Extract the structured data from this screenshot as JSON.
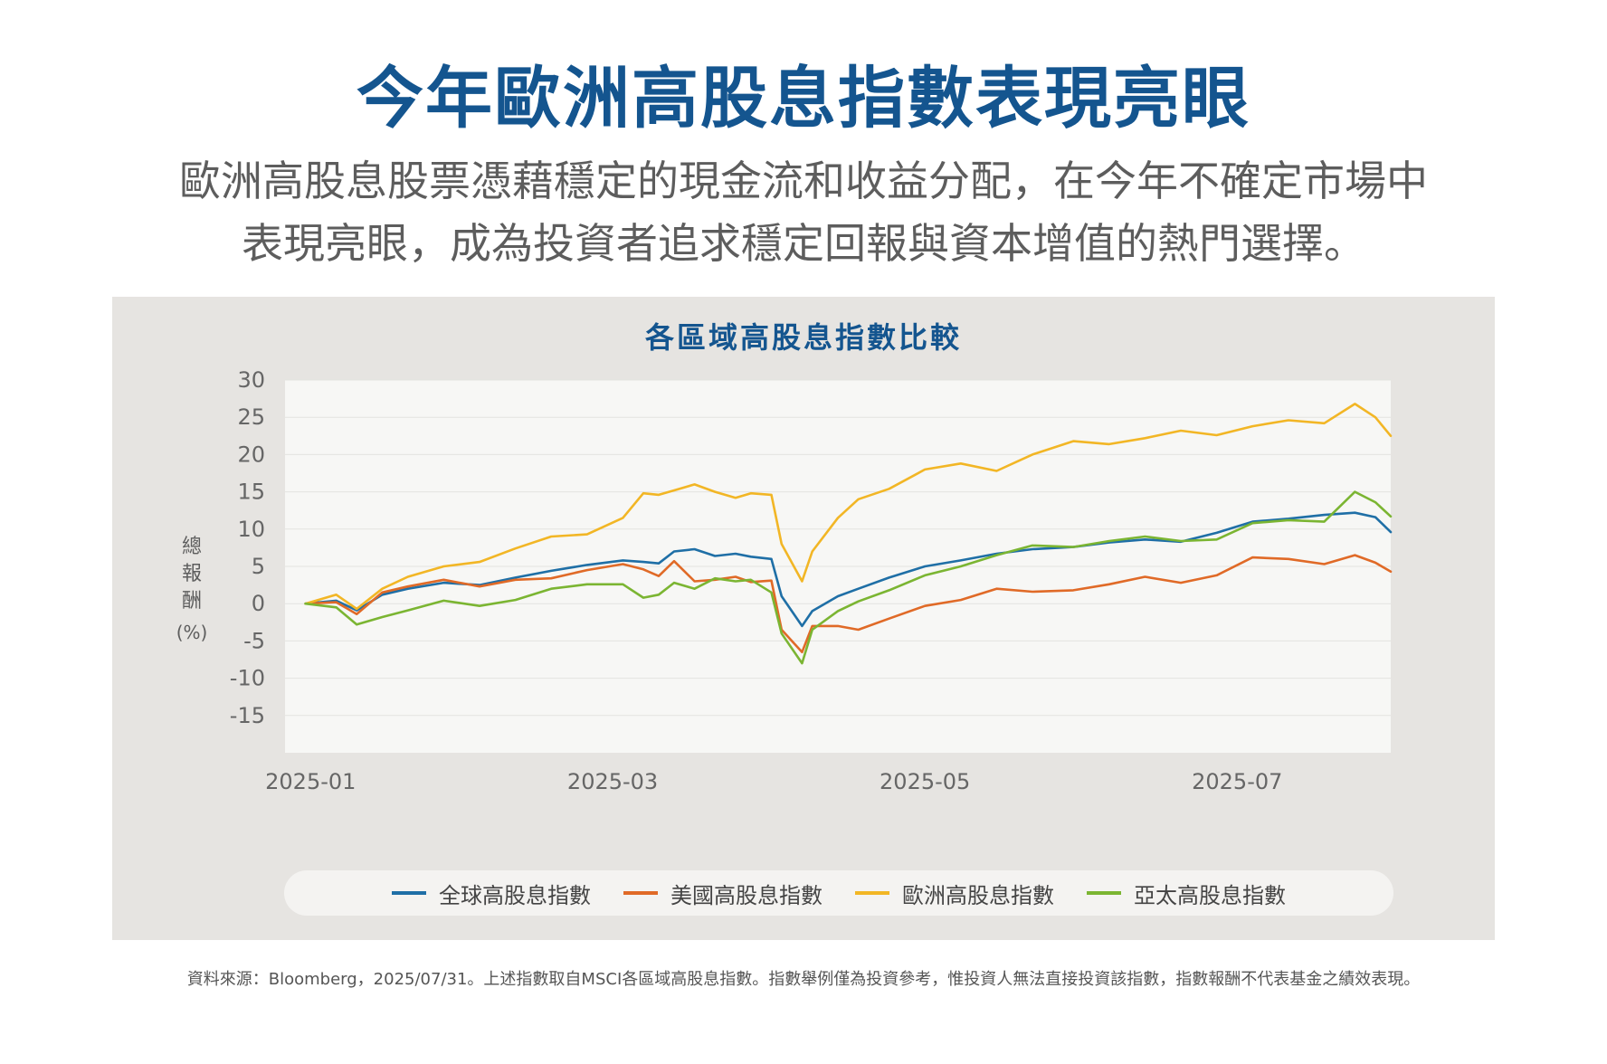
{
  "header": {
    "title": "今年歐洲高股息指數表現亮眼",
    "subtitle_line1": "歐洲高股息股票憑藉穩定的現金流和收益分配，在今年不確定市場中",
    "subtitle_line2": "表現亮眼，成為投資者追求穩定回報與資本增值的熱門選擇。"
  },
  "footer": {
    "source": "資料來源：Bloomberg，2025/07/31。上述指數取自MSCI各區域高股息指數。指數舉例僅為投資參考，惟投資人無法直接投資該指數，指數報酬不代表基金之績效表現。"
  },
  "chart_data": {
    "type": "line",
    "title": "各區域高股息指數比較",
    "ylabel": "總報酬",
    "ylabel_unit": "(%)",
    "xlabel": "",
    "ylim": [
      -20,
      30
    ],
    "yticks": [
      30,
      25,
      20,
      15,
      10,
      5,
      0,
      -5,
      -10,
      -15
    ],
    "xlim": [
      "2024-12-27",
      "2025-07-31"
    ],
    "xticks": [
      "2025-01",
      "2025-03",
      "2025-05",
      "2025-07"
    ],
    "grid": true,
    "legend_position": "bottom",
    "series": [
      {
        "name": "全球高股息指數",
        "color": "#1f6fa6",
        "points": [
          [
            "2024-12-31",
            0
          ],
          [
            "2025-01-06",
            0.4
          ],
          [
            "2025-01-10",
            -0.9
          ],
          [
            "2025-01-15",
            1.2
          ],
          [
            "2025-01-20",
            2.0
          ],
          [
            "2025-01-27",
            2.8
          ],
          [
            "2025-02-03",
            2.5
          ],
          [
            "2025-02-10",
            3.5
          ],
          [
            "2025-02-17",
            4.4
          ],
          [
            "2025-02-24",
            5.2
          ],
          [
            "2025-03-03",
            5.8
          ],
          [
            "2025-03-07",
            5.6
          ],
          [
            "2025-03-10",
            5.4
          ],
          [
            "2025-03-13",
            7.0
          ],
          [
            "2025-03-17",
            7.3
          ],
          [
            "2025-03-21",
            6.4
          ],
          [
            "2025-03-25",
            6.7
          ],
          [
            "2025-03-28",
            6.3
          ],
          [
            "2025-04-01",
            6.0
          ],
          [
            "2025-04-03",
            1.0
          ],
          [
            "2025-04-07",
            -3.0
          ],
          [
            "2025-04-09",
            -1.0
          ],
          [
            "2025-04-14",
            1.0
          ],
          [
            "2025-04-18",
            2.0
          ],
          [
            "2025-04-24",
            3.5
          ],
          [
            "2025-05-01",
            5.0
          ],
          [
            "2025-05-08",
            5.8
          ],
          [
            "2025-05-15",
            6.7
          ],
          [
            "2025-05-22",
            7.3
          ],
          [
            "2025-05-30",
            7.6
          ],
          [
            "2025-06-06",
            8.2
          ],
          [
            "2025-06-13",
            8.6
          ],
          [
            "2025-06-20",
            8.3
          ],
          [
            "2025-06-27",
            9.5
          ],
          [
            "2025-07-04",
            11.0
          ],
          [
            "2025-07-11",
            11.4
          ],
          [
            "2025-07-18",
            11.9
          ],
          [
            "2025-07-24",
            12.2
          ],
          [
            "2025-07-28",
            11.6
          ],
          [
            "2025-07-31",
            9.6
          ]
        ]
      },
      {
        "name": "美國高股息指數",
        "color": "#e06a27",
        "points": [
          [
            "2024-12-31",
            0
          ],
          [
            "2025-01-06",
            0.2
          ],
          [
            "2025-01-10",
            -1.4
          ],
          [
            "2025-01-15",
            1.5
          ],
          [
            "2025-01-20",
            2.3
          ],
          [
            "2025-01-27",
            3.2
          ],
          [
            "2025-02-03",
            2.3
          ],
          [
            "2025-02-10",
            3.2
          ],
          [
            "2025-02-17",
            3.4
          ],
          [
            "2025-02-24",
            4.5
          ],
          [
            "2025-03-03",
            5.3
          ],
          [
            "2025-03-07",
            4.6
          ],
          [
            "2025-03-10",
            3.7
          ],
          [
            "2025-03-13",
            5.7
          ],
          [
            "2025-03-17",
            3.0
          ],
          [
            "2025-03-21",
            3.2
          ],
          [
            "2025-03-25",
            3.6
          ],
          [
            "2025-03-28",
            2.9
          ],
          [
            "2025-04-01",
            3.1
          ],
          [
            "2025-04-03",
            -3.5
          ],
          [
            "2025-04-07",
            -6.5
          ],
          [
            "2025-04-09",
            -3.0
          ],
          [
            "2025-04-14",
            -3.0
          ],
          [
            "2025-04-18",
            -3.5
          ],
          [
            "2025-04-24",
            -2.0
          ],
          [
            "2025-05-01",
            -0.3
          ],
          [
            "2025-05-08",
            0.5
          ],
          [
            "2025-05-15",
            2.0
          ],
          [
            "2025-05-22",
            1.6
          ],
          [
            "2025-05-30",
            1.8
          ],
          [
            "2025-06-06",
            2.6
          ],
          [
            "2025-06-13",
            3.6
          ],
          [
            "2025-06-20",
            2.8
          ],
          [
            "2025-06-27",
            3.8
          ],
          [
            "2025-07-04",
            6.2
          ],
          [
            "2025-07-11",
            6.0
          ],
          [
            "2025-07-18",
            5.3
          ],
          [
            "2025-07-24",
            6.5
          ],
          [
            "2025-07-28",
            5.5
          ],
          [
            "2025-07-31",
            4.3
          ]
        ]
      },
      {
        "name": "歐洲高股息指數",
        "color": "#f2b625",
        "points": [
          [
            "2024-12-31",
            0
          ],
          [
            "2025-01-06",
            1.2
          ],
          [
            "2025-01-10",
            -0.7
          ],
          [
            "2025-01-15",
            2.0
          ],
          [
            "2025-01-20",
            3.6
          ],
          [
            "2025-01-27",
            5.0
          ],
          [
            "2025-02-03",
            5.6
          ],
          [
            "2025-02-10",
            7.4
          ],
          [
            "2025-02-17",
            9.0
          ],
          [
            "2025-02-24",
            9.3
          ],
          [
            "2025-03-03",
            11.5
          ],
          [
            "2025-03-07",
            14.8
          ],
          [
            "2025-03-10",
            14.6
          ],
          [
            "2025-03-13",
            15.2
          ],
          [
            "2025-03-17",
            16.0
          ],
          [
            "2025-03-21",
            15.0
          ],
          [
            "2025-03-25",
            14.2
          ],
          [
            "2025-03-28",
            14.8
          ],
          [
            "2025-04-01",
            14.6
          ],
          [
            "2025-04-03",
            8.0
          ],
          [
            "2025-04-07",
            3.0
          ],
          [
            "2025-04-09",
            7.0
          ],
          [
            "2025-04-14",
            11.5
          ],
          [
            "2025-04-18",
            14.0
          ],
          [
            "2025-04-24",
            15.4
          ],
          [
            "2025-05-01",
            18.0
          ],
          [
            "2025-05-08",
            18.8
          ],
          [
            "2025-05-15",
            17.8
          ],
          [
            "2025-05-22",
            20.0
          ],
          [
            "2025-05-30",
            21.8
          ],
          [
            "2025-06-06",
            21.4
          ],
          [
            "2025-06-13",
            22.2
          ],
          [
            "2025-06-20",
            23.2
          ],
          [
            "2025-06-27",
            22.6
          ],
          [
            "2025-07-04",
            23.8
          ],
          [
            "2025-07-11",
            24.6
          ],
          [
            "2025-07-18",
            24.2
          ],
          [
            "2025-07-24",
            26.8
          ],
          [
            "2025-07-28",
            25.0
          ],
          [
            "2025-07-31",
            22.5
          ]
        ]
      },
      {
        "name": "亞太高股息指數",
        "color": "#7bb532",
        "points": [
          [
            "2024-12-31",
            0
          ],
          [
            "2025-01-06",
            -0.5
          ],
          [
            "2025-01-10",
            -2.8
          ],
          [
            "2025-01-15",
            -1.8
          ],
          [
            "2025-01-20",
            -0.9
          ],
          [
            "2025-01-27",
            0.4
          ],
          [
            "2025-02-03",
            -0.3
          ],
          [
            "2025-02-10",
            0.5
          ],
          [
            "2025-02-17",
            2.0
          ],
          [
            "2025-02-24",
            2.6
          ],
          [
            "2025-03-03",
            2.6
          ],
          [
            "2025-03-07",
            0.8
          ],
          [
            "2025-03-10",
            1.2
          ],
          [
            "2025-03-13",
            2.8
          ],
          [
            "2025-03-17",
            2.0
          ],
          [
            "2025-03-21",
            3.4
          ],
          [
            "2025-03-25",
            3.0
          ],
          [
            "2025-03-28",
            3.2
          ],
          [
            "2025-04-01",
            1.5
          ],
          [
            "2025-04-03",
            -4.0
          ],
          [
            "2025-04-07",
            -8.0
          ],
          [
            "2025-04-09",
            -3.5
          ],
          [
            "2025-04-14",
            -1.0
          ],
          [
            "2025-04-18",
            0.3
          ],
          [
            "2025-04-24",
            1.8
          ],
          [
            "2025-05-01",
            3.8
          ],
          [
            "2025-05-08",
            5.0
          ],
          [
            "2025-05-15",
            6.5
          ],
          [
            "2025-05-22",
            7.8
          ],
          [
            "2025-05-30",
            7.6
          ],
          [
            "2025-06-06",
            8.4
          ],
          [
            "2025-06-13",
            9.0
          ],
          [
            "2025-06-20",
            8.4
          ],
          [
            "2025-06-27",
            8.6
          ],
          [
            "2025-07-04",
            10.8
          ],
          [
            "2025-07-11",
            11.2
          ],
          [
            "2025-07-18",
            11.0
          ],
          [
            "2025-07-24",
            15.0
          ],
          [
            "2025-07-28",
            13.6
          ],
          [
            "2025-07-31",
            11.7
          ]
        ]
      }
    ]
  }
}
